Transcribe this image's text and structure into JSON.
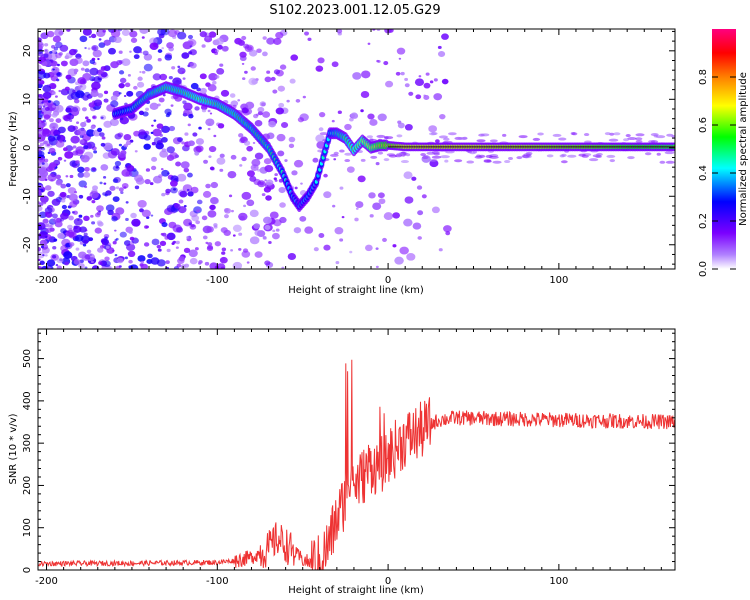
{
  "title": "S102.2023.001.12.05.G29",
  "chart_data": [
    {
      "type": "heatmap",
      "xlabel": "Height of straight line (km)",
      "ylabel": "Frequency (Hz)",
      "xlim": [
        -205,
        168
      ],
      "ylim": [
        -25,
        24.5
      ],
      "xticks": [
        -200,
        -100,
        0,
        100
      ],
      "yticks": [
        -20,
        -10,
        0,
        10,
        20
      ],
      "colorbar": {
        "label": "Normalized spectral amplitude",
        "range": [
          0,
          1
        ],
        "ticks": [
          "0.0",
          "0.2",
          "0.4",
          "0.6",
          "0.8"
        ],
        "tick_values": [
          0.0,
          0.2,
          0.4,
          0.6,
          0.8
        ],
        "colormap": [
          "#ffffff",
          "#7b00ff",
          "#0000ff",
          "#00ffff",
          "#00ff00",
          "#ffff00",
          "#ff7f00",
          "#ff0000",
          "#ff007f"
        ]
      },
      "ridge": {
        "x": [
          -160,
          -150,
          -140,
          -130,
          -120,
          -110,
          -100,
          -90,
          -80,
          -70,
          -62,
          -56,
          -52,
          -47,
          -42,
          -38,
          -34,
          -30,
          -25,
          -20,
          -15,
          -10,
          -5,
          0,
          10,
          50,
          100,
          168
        ],
        "y": [
          7,
          8,
          11,
          12.5,
          11.5,
          10,
          9,
          7,
          4,
          0,
          -5,
          -10,
          -12,
          -10,
          -7,
          -2,
          3,
          3,
          2,
          -0.5,
          1.5,
          0,
          0.5,
          0.5,
          0.2,
          0.2,
          0.2,
          0.2
        ],
        "amplitude": [
          0.35,
          0.4,
          0.45,
          0.5,
          0.5,
          0.55,
          0.5,
          0.5,
          0.45,
          0.45,
          0.4,
          0.35,
          0.3,
          0.35,
          0.35,
          0.4,
          0.4,
          0.45,
          0.5,
          0.55,
          0.6,
          0.65,
          0.7,
          0.75,
          0.85,
          0.85,
          0.8,
          0.7
        ]
      }
    },
    {
      "type": "line",
      "xlabel": "Height of straight line (km)",
      "ylabel": "SNR (10 * v/v)",
      "xlim": [
        -205,
        168
      ],
      "ylim": [
        0,
        570
      ],
      "xticks": [
        -200,
        -100,
        0,
        100
      ],
      "yticks": [
        0,
        100,
        200,
        300,
        400,
        500
      ],
      "color": "#ee3333",
      "series": [
        {
          "x": [
            -205,
            -150,
            -100,
            -90,
            -80,
            -70,
            -65,
            -60,
            -55,
            -50,
            -45,
            -40,
            -35,
            -30,
            -25,
            -22,
            -20,
            -15,
            -10,
            -5,
            0,
            5,
            10,
            15,
            20,
            25,
            30,
            40,
            60,
            100,
            168
          ],
          "y": [
            15,
            16,
            18,
            22,
            30,
            50,
            75,
            60,
            40,
            25,
            15,
            15,
            60,
            120,
            170,
            250,
            200,
            220,
            250,
            240,
            270,
            290,
            310,
            320,
            330,
            345,
            355,
            360,
            358,
            355,
            350
          ]
        }
      ]
    }
  ]
}
